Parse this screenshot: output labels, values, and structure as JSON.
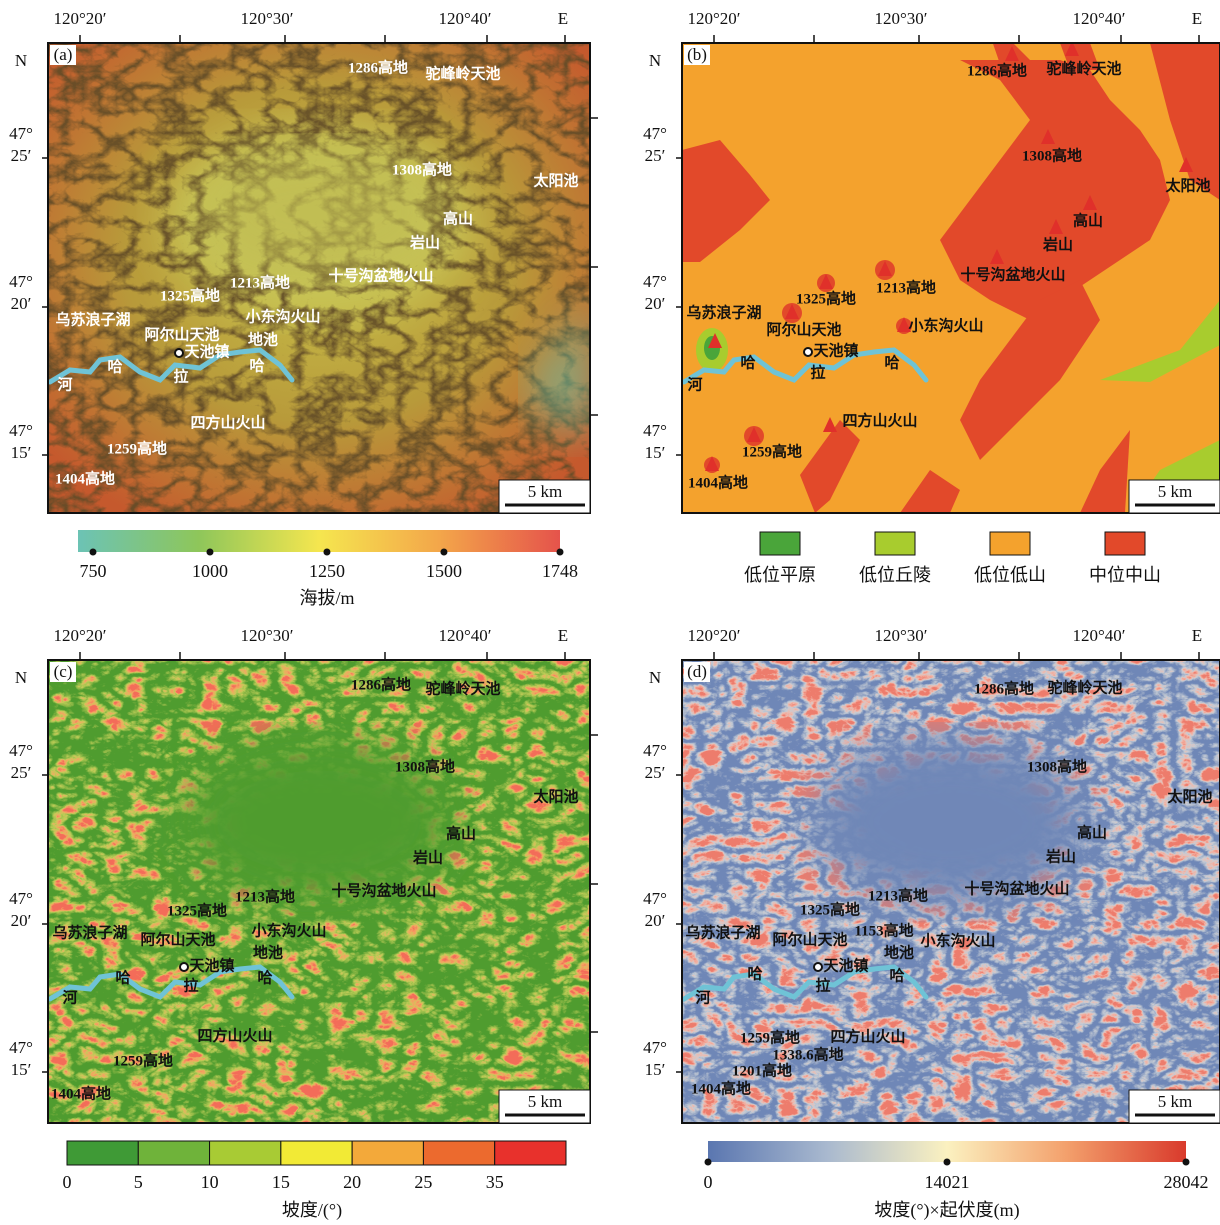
{
  "panels": [
    {
      "label": "(a)",
      "lon_labels": [
        "120°20′",
        "120°30′",
        "120°40′",
        "E"
      ],
      "north": "N",
      "lat_labels": [
        [
          "47°",
          "25′"
        ],
        [
          "47°",
          "20′"
        ],
        [
          "47°",
          "15′"
        ]
      ],
      "places": [
        "1286高地",
        "驼峰岭天池",
        "1308高地",
        "太阳池",
        "高山",
        "岩山",
        "十号沟盆地火山",
        "1213高地",
        "1325高地",
        "乌苏浪子湖",
        "阿尔山天池",
        "小东沟火山",
        "地池",
        "天池镇",
        "哈",
        "拉",
        "哈",
        "河",
        "四方山火山",
        "1259高地",
        "1404高地"
      ],
      "scale": "5 km"
    },
    {
      "label": "(b)",
      "lon_labels": [
        "120°20′",
        "120°30′",
        "120°40′",
        "E"
      ],
      "north": "N",
      "lat_labels": [
        [
          "47°",
          "25′"
        ],
        [
          "47°",
          "20′"
        ],
        [
          "47°",
          "15′"
        ]
      ],
      "places": [
        "1286高地",
        "驼峰岭天池",
        "1308高地",
        "太阳池",
        "高山",
        "岩山",
        "十号沟盆地火山",
        "1213高地",
        "1325高地",
        "乌苏浪子湖",
        "阿尔山天池",
        "小东沟火山",
        "天池镇",
        "哈",
        "拉",
        "哈",
        "河",
        "四方山火山",
        "1259高地",
        "1404高地"
      ],
      "scale": "5 km"
    },
    {
      "label": "(c)",
      "lon_labels": [
        "120°20′",
        "120°30′",
        "120°40′",
        "E"
      ],
      "north": "N",
      "lat_labels": [
        [
          "47°",
          "25′"
        ],
        [
          "47°",
          "20′"
        ],
        [
          "47°",
          "15′"
        ]
      ],
      "places": [
        "1286高地",
        "驼峰岭天池",
        "1308高地",
        "太阳池",
        "高山",
        "岩山",
        "十号沟盆地火山",
        "1213高地",
        "1325高地",
        "乌苏浪子湖",
        "阿尔山天池",
        "小东沟火山",
        "地池",
        "天池镇",
        "哈",
        "拉",
        "哈",
        "河",
        "四方山火山",
        "1259高地",
        "1404高地"
      ],
      "scale": "5 km"
    },
    {
      "label": "(d)",
      "lon_labels": [
        "120°20′",
        "120°30′",
        "120°40′",
        "E"
      ],
      "north": "N",
      "lat_labels": [
        [
          "47°",
          "25′"
        ],
        [
          "47°",
          "20′"
        ],
        [
          "47°",
          "15′"
        ]
      ],
      "places": [
        "1286高地",
        "驼峰岭天池",
        "1308高地",
        "太阳池",
        "高山",
        "岩山",
        "十号沟盆地火山",
        "1213高地",
        "1325高地",
        "1153高地",
        "乌苏浪子湖",
        "阿尔山天池",
        "小东沟火山",
        "地池",
        "天池镇",
        "哈",
        "拉",
        "哈",
        "河",
        "四方山火山",
        "1259高地",
        "1338.6高地",
        "1201高地",
        "1404高地"
      ],
      "scale": "5 km"
    }
  ],
  "legend_a": {
    "title": "海拔/m",
    "range": [
      718,
      1748
    ],
    "ticks": [
      750,
      1000,
      1250,
      1500,
      1748
    ],
    "colors": [
      "#6cc3b5",
      "#8ec65a",
      "#f5e64f",
      "#f3a64a",
      "#e5534b"
    ]
  },
  "legend_b": {
    "items": [
      {
        "name": "低位平原",
        "color": "#4aa53a"
      },
      {
        "name": "低位丘陵",
        "color": "#a8cc2e"
      },
      {
        "name": "低位低山",
        "color": "#f4a22d"
      },
      {
        "name": "中位中山",
        "color": "#e2492a"
      }
    ]
  },
  "legend_c": {
    "title": "坡度/(°)",
    "ticks": [
      0,
      5,
      10,
      15,
      20,
      25,
      35
    ],
    "colors": [
      "#3f9a36",
      "#6fb33a",
      "#a8cb34",
      "#f2ea35",
      "#f3a93a",
      "#ec6a2e",
      "#e8312c"
    ]
  },
  "legend_d": {
    "title": "坡度(°)×起伏度(m)",
    "range": [
      0,
      28042
    ],
    "ticks": [
      0,
      14021,
      28042
    ],
    "colors": [
      "#5a76b0",
      "#a9b9cf",
      "#fbf1c0",
      "#f3a06c",
      "#d93a2c"
    ]
  }
}
